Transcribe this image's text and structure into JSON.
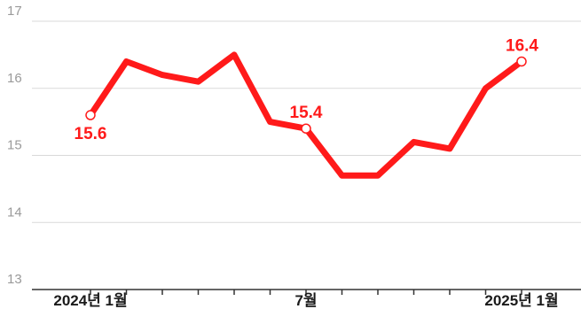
{
  "chart_data": {
    "type": "line",
    "title": "",
    "xlabel": "",
    "ylabel": "",
    "ylim": [
      13,
      17
    ],
    "yticks": [
      13,
      14,
      15,
      16,
      17
    ],
    "grid": true,
    "legend": "none",
    "x": [
      "2024-01",
      "2024-02",
      "2024-03",
      "2024-04",
      "2024-05",
      "2024-06",
      "2024-07",
      "2024-08",
      "2024-09",
      "2024-10",
      "2024-11",
      "2024-12",
      "2025-01"
    ],
    "x_tick_labels": [
      {
        "index": 0,
        "label": "2024년 1월"
      },
      {
        "index": 6,
        "label": "7월"
      },
      {
        "index": 12,
        "label": "2025년 1월"
      }
    ],
    "series": [
      {
        "values": [
          15.6,
          16.4,
          16.2,
          16.1,
          16.5,
          15.5,
          15.4,
          14.7,
          14.7,
          15.2,
          15.1,
          16.0,
          16.4
        ],
        "color": "#ff1a1a"
      }
    ],
    "annotations": [
      {
        "index": 0,
        "text": "15.6",
        "placement": "below"
      },
      {
        "index": 6,
        "text": "15.4",
        "placement": "above"
      },
      {
        "index": 12,
        "text": "16.4",
        "placement": "above"
      }
    ]
  }
}
